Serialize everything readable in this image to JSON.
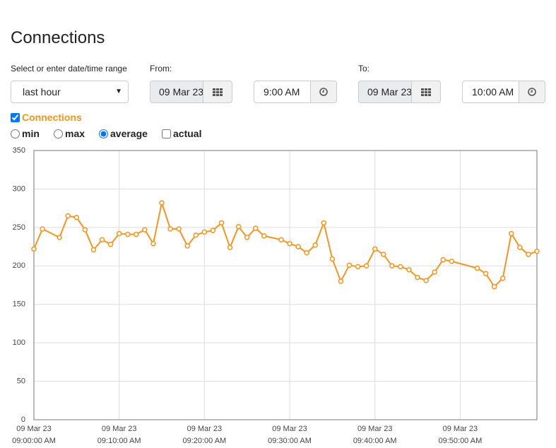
{
  "header": {
    "title": "Connections"
  },
  "range": {
    "label": "Select or enter date/time range",
    "selected": "last hour"
  },
  "from": {
    "label": "From:",
    "date": "09 Mar 23",
    "time": "9:00 AM"
  },
  "to": {
    "label": "To:",
    "date": "09 Mar 23",
    "time": "10:00 AM"
  },
  "series_toggle": {
    "label": "Connections",
    "checked": true
  },
  "modes": [
    {
      "label": "min",
      "checked": false
    },
    {
      "label": "max",
      "checked": false
    },
    {
      "label": "average",
      "checked": true
    },
    {
      "label": "actual",
      "checked": false
    }
  ],
  "chart_data": {
    "type": "line",
    "x": [
      "09 Mar 23 09:00:00 AM",
      "09 Mar 23 09:01:00 AM",
      "09 Mar 23 09:03:00 AM",
      "09 Mar 23 09:04:00 AM",
      "09 Mar 23 09:05:00 AM",
      "09 Mar 23 09:06:00 AM",
      "09 Mar 23 09:07:00 AM",
      "09 Mar 23 09:08:00 AM",
      "09 Mar 23 09:09:00 AM",
      "09 Mar 23 09:10:00 AM",
      "09 Mar 23 09:11:00 AM",
      "09 Mar 23 09:12:00 AM",
      "09 Mar 23 09:13:00 AM",
      "09 Mar 23 09:14:00 AM",
      "09 Mar 23 09:15:00 AM",
      "09 Mar 23 09:16:00 AM",
      "09 Mar 23 09:17:00 AM",
      "09 Mar 23 09:18:00 AM",
      "09 Mar 23 09:19:00 AM",
      "09 Mar 23 09:20:00 AM",
      "09 Mar 23 09:21:00 AM",
      "09 Mar 23 09:22:00 AM",
      "09 Mar 23 09:23:00 AM",
      "09 Mar 23 09:24:00 AM",
      "09 Mar 23 09:25:00 AM",
      "09 Mar 23 09:26:00 AM",
      "09 Mar 23 09:27:00 AM",
      "09 Mar 23 09:29:00 AM",
      "09 Mar 23 09:30:00 AM",
      "09 Mar 23 09:31:00 AM",
      "09 Mar 23 09:32:00 AM",
      "09 Mar 23 09:33:00 AM",
      "09 Mar 23 09:34:00 AM",
      "09 Mar 23 09:35:00 AM",
      "09 Mar 23 09:36:00 AM",
      "09 Mar 23 09:37:00 AM",
      "09 Mar 23 09:38:00 AM",
      "09 Mar 23 09:39:00 AM",
      "09 Mar 23 09:40:00 AM",
      "09 Mar 23 09:41:00 AM",
      "09 Mar 23 09:42:00 AM",
      "09 Mar 23 09:43:00 AM",
      "09 Mar 23 09:44:00 AM",
      "09 Mar 23 09:45:00 AM",
      "09 Mar 23 09:46:00 AM",
      "09 Mar 23 09:47:00 AM",
      "09 Mar 23 09:48:00 AM",
      "09 Mar 23 09:49:00 AM",
      "09 Mar 23 09:52:00 AM",
      "09 Mar 23 09:53:00 AM",
      "09 Mar 23 09:54:00 AM",
      "09 Mar 23 09:55:00 AM",
      "09 Mar 23 09:56:00 AM",
      "09 Mar 23 09:57:00 AM",
      "09 Mar 23 09:58:00 AM",
      "09 Mar 23 09:59:00 AM"
    ],
    "series": [
      {
        "name": "Connections",
        "color": "#f7941d",
        "values": [
          222,
          248,
          237,
          265,
          263,
          247,
          221,
          234,
          228,
          242,
          241,
          241,
          247,
          229,
          282,
          248,
          248,
          226,
          240,
          244,
          246,
          256,
          224,
          251,
          237,
          249,
          239,
          234,
          229,
          225,
          217,
          227,
          256,
          209,
          180,
          201,
          199,
          200,
          222,
          215,
          200,
          199,
          195,
          185,
          181,
          192,
          208,
          206,
          197,
          190,
          173,
          184,
          242,
          224,
          215,
          219
        ]
      }
    ],
    "xlim": [
      "09 Mar 23 09:00:00 AM",
      "09 Mar 23 09:59:00 AM"
    ],
    "xticks": [
      "09 Mar 23 09:00:00 AM",
      "09 Mar 23 09:10:00 AM",
      "09 Mar 23 09:20:00 AM",
      "09 Mar 23 09:30:00 AM",
      "09 Mar 23 09:40:00 AM",
      "09 Mar 23 09:50:00 AM"
    ],
    "ylim": [
      0,
      350
    ],
    "yticks": [
      0,
      50,
      100,
      150,
      200,
      250,
      300,
      350
    ],
    "grid": true
  }
}
